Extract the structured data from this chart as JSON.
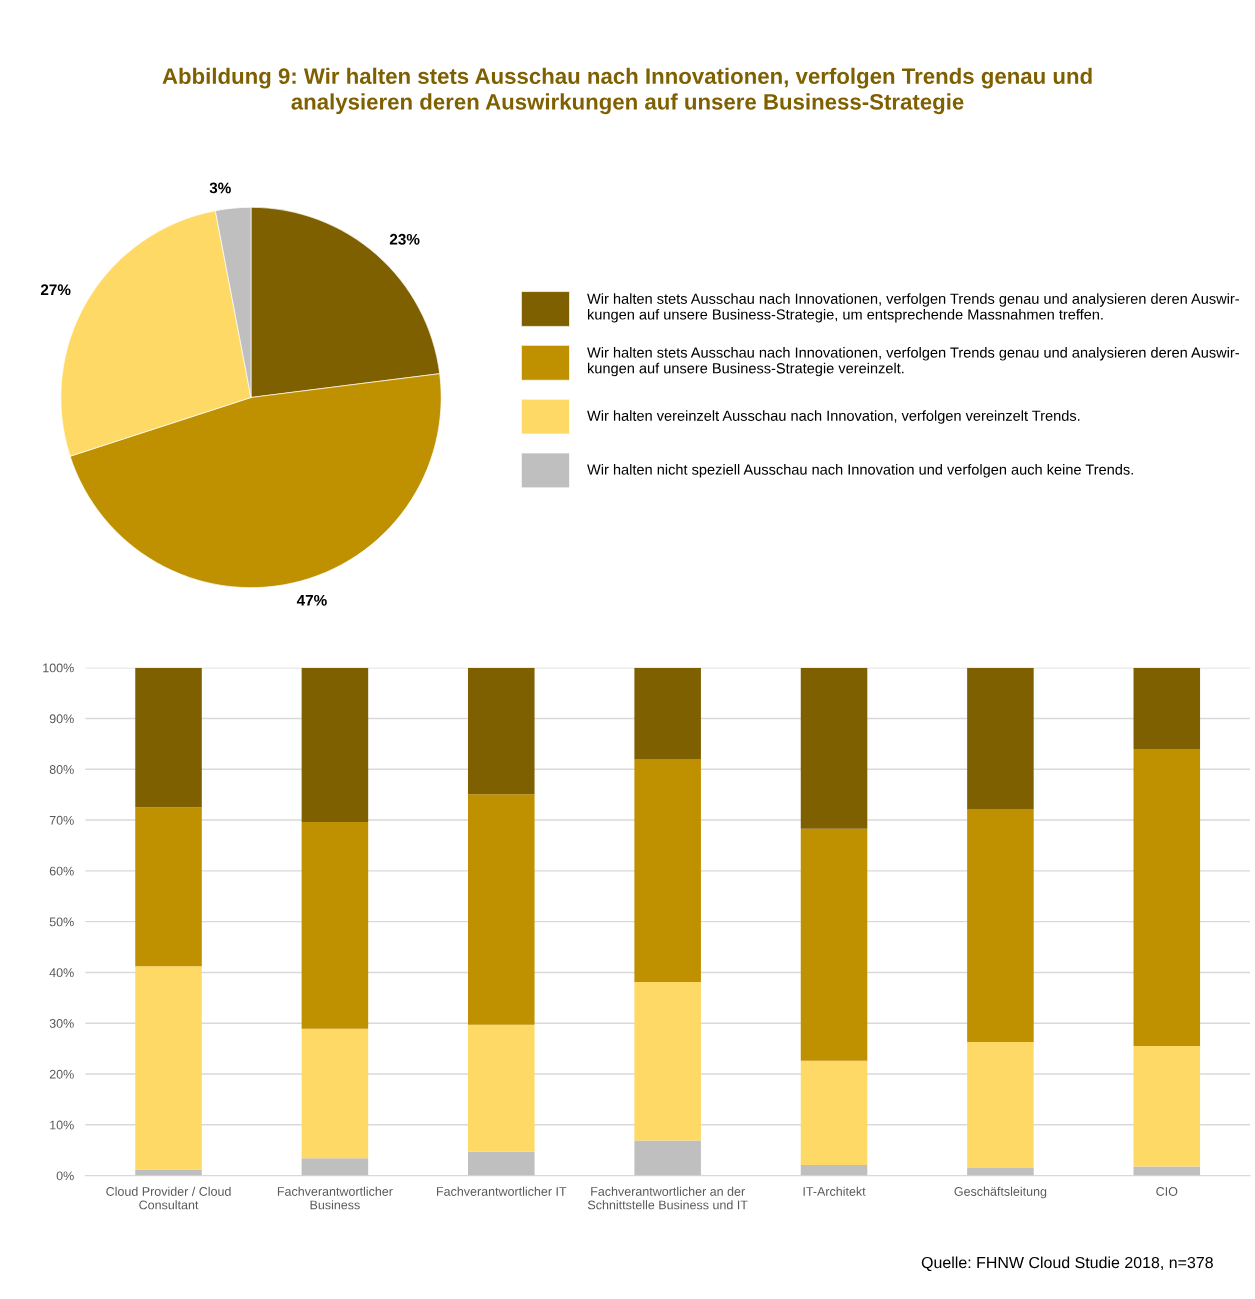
{
  "chart_data": [
    {
      "type": "pie",
      "title": "Abbildung 9: Wir halten stets Ausschau nach Innovationen, verfolgen Trends genau und\nanalysieren deren Auswirkungen auf unsere Business-Strategie",
      "categories": [
        "Wir halten stets Ausschau nach Innovationen, verfolgen Trends genau und analysieren deren Auswir-\nkungen auf unsere Business-Strategie, um entsprechende Massnahmen treffen.",
        "Wir halten stets Ausschau nach Innovationen, verfolgen Trends genau und analysieren deren Auswir-\nkungen auf unsere Business-Strategie vereinzelt.",
        "Wir halten vereinzelt Ausschau nach Innovation, verfolgen vereinzelt Trends.",
        "Wir halten nicht speziell Ausschau nach Innovation und verfolgen auch keine Trends."
      ],
      "values": [
        23,
        47,
        27,
        3
      ],
      "value_labels": [
        "23%",
        "47%",
        "27%",
        "3%"
      ],
      "colors": [
        "#7f6000",
        "#bf9000",
        "#ffd966",
        "#bfbfbf"
      ],
      "legend": "right"
    },
    {
      "type": "bar",
      "stacked": true,
      "categories": [
        "Cloud Provider / Cloud\nConsultant",
        "Fachverantwortlicher\nBusiness",
        "Fachverantwortlicher IT",
        "Fachverantwortlicher an der\nSchnittstelle Business und IT",
        "IT-Architekt",
        "Geschäftsleitung",
        "CIO"
      ],
      "series": [
        {
          "color": "#bfbfbf",
          "values": [
            1.2,
            3.4,
            4.7,
            6.9,
            2.1,
            1.5,
            1.8
          ]
        },
        {
          "color": "#ffd966",
          "values": [
            40.0,
            25.5,
            25.0,
            31.2,
            20.5,
            24.8,
            23.7
          ]
        },
        {
          "color": "#bf9000",
          "values": [
            31.3,
            40.7,
            45.4,
            43.9,
            45.7,
            45.9,
            58.5
          ]
        },
        {
          "color": "#7f6000",
          "values": [
            27.5,
            30.4,
            24.9,
            18.0,
            31.7,
            27.8,
            16.0
          ]
        }
      ],
      "ylim": [
        0,
        100
      ],
      "yticks": [
        {
          "value": 0,
          "label": "0%"
        },
        {
          "value": 10,
          "label": "10%"
        },
        {
          "value": 20,
          "label": "20%"
        },
        {
          "value": 30,
          "label": "30%"
        },
        {
          "value": 40,
          "label": "40%"
        },
        {
          "value": 50,
          "label": "50%"
        },
        {
          "value": 60,
          "label": "60%"
        },
        {
          "value": 70,
          "label": "70%"
        },
        {
          "value": 80,
          "label": "80%"
        },
        {
          "value": 90,
          "label": "90%"
        },
        {
          "value": 100,
          "label": "100%"
        }
      ],
      "grid": "y",
      "annotations": [
        "Quelle: FHNW Cloud Studie 2018, n=378"
      ]
    }
  ]
}
